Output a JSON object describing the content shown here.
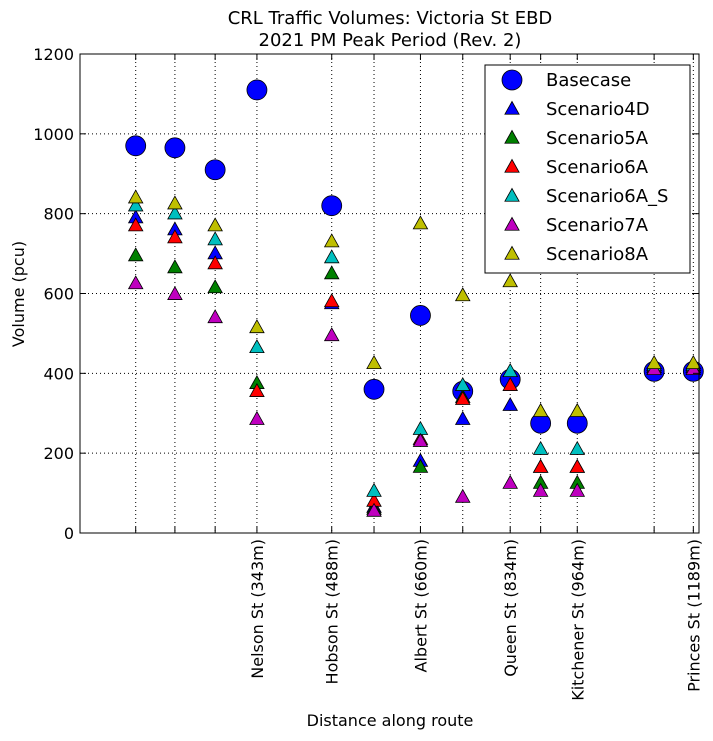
{
  "chart_data": {
    "type": "scatter",
    "title": "CRL Traffic Volumes: Victoria St EBD",
    "subtitle": "2021 PM Peak Period (Rev. 2)",
    "xlabel": "Distance along route",
    "ylabel": "Volume (pcu)",
    "ylim": [
      0,
      1200
    ],
    "yticks": [
      0,
      200,
      400,
      600,
      800,
      1000,
      1200
    ],
    "xlim": [
      0,
      1200
    ],
    "xticks": [
      {
        "x": 343,
        "label": "Nelson St (343m)"
      },
      {
        "x": 488,
        "label": "Hobson St (488m)"
      },
      {
        "x": 660,
        "label": "Albert St (660m)"
      },
      {
        "x": 834,
        "label": "Queen St (834m)"
      },
      {
        "x": 964,
        "label": "Kitchener St (964m)"
      },
      {
        "x": 1189,
        "label": "Princes St (1189m)"
      }
    ],
    "vgrid_x": [
      108,
      184,
      262,
      343,
      488,
      570,
      660,
      742,
      834,
      893,
      964,
      1113,
      1189
    ],
    "grid": true,
    "legend_position": "top-right",
    "series": [
      {
        "name": "Basecase",
        "marker": "circle",
        "color": "#0000ff",
        "x": [
          108,
          184,
          262,
          343,
          488,
          570,
          660,
          742,
          834,
          893,
          964,
          1113,
          1189
        ],
        "y": [
          970,
          965,
          910,
          1110,
          820,
          360,
          545,
          355,
          385,
          275,
          275,
          405,
          405
        ]
      },
      {
        "name": "Scenario4D",
        "marker": "triangle",
        "color": "#0000ff",
        "x": [
          108,
          184,
          262,
          488,
          570,
          660,
          742,
          834,
          893,
          964,
          1113,
          1189
        ],
        "y": [
          790,
          760,
          700,
          575,
          65,
          180,
          285,
          320,
          165,
          165,
          415,
          415
        ]
      },
      {
        "name": "Scenario5A",
        "marker": "triangle",
        "color": "#008000",
        "x": [
          108,
          184,
          262,
          343,
          488,
          570,
          660,
          742,
          893,
          964,
          1113,
          1189
        ],
        "y": [
          695,
          665,
          615,
          375,
          650,
          60,
          165,
          340,
          125,
          125,
          420,
          420
        ]
      },
      {
        "name": "Scenario6A",
        "marker": "triangle",
        "color": "#ff0000",
        "x": [
          108,
          184,
          262,
          343,
          488,
          570,
          660,
          742,
          834,
          893,
          964,
          1113,
          1189
        ],
        "y": [
          770,
          740,
          675,
          355,
          580,
          80,
          235,
          335,
          370,
          165,
          165,
          415,
          415
        ]
      },
      {
        "name": "Scenario6A_S",
        "marker": "triangle",
        "color": "#00bfbf",
        "x": [
          108,
          184,
          262,
          343,
          488,
          570,
          660,
          742,
          834,
          893,
          964,
          1113,
          1189
        ],
        "y": [
          820,
          800,
          735,
          465,
          690,
          105,
          260,
          370,
          405,
          210,
          210,
          420,
          420
        ]
      },
      {
        "name": "Scenario7A",
        "marker": "triangle",
        "color": "#bf00bf",
        "x": [
          108,
          184,
          262,
          343,
          488,
          570,
          660,
          742,
          834,
          893,
          964,
          1113,
          1189
        ],
        "y": [
          625,
          598,
          540,
          285,
          495,
          55,
          230,
          90,
          125,
          105,
          105,
          410,
          410
        ]
      },
      {
        "name": "Scenario8A",
        "marker": "triangle",
        "color": "#bfbf00",
        "x": [
          108,
          184,
          262,
          343,
          488,
          570,
          660,
          742,
          834,
          893,
          964,
          1113,
          1189
        ],
        "y": [
          840,
          825,
          770,
          515,
          730,
          425,
          775,
          595,
          630,
          305,
          305,
          425,
          425
        ]
      }
    ]
  }
}
